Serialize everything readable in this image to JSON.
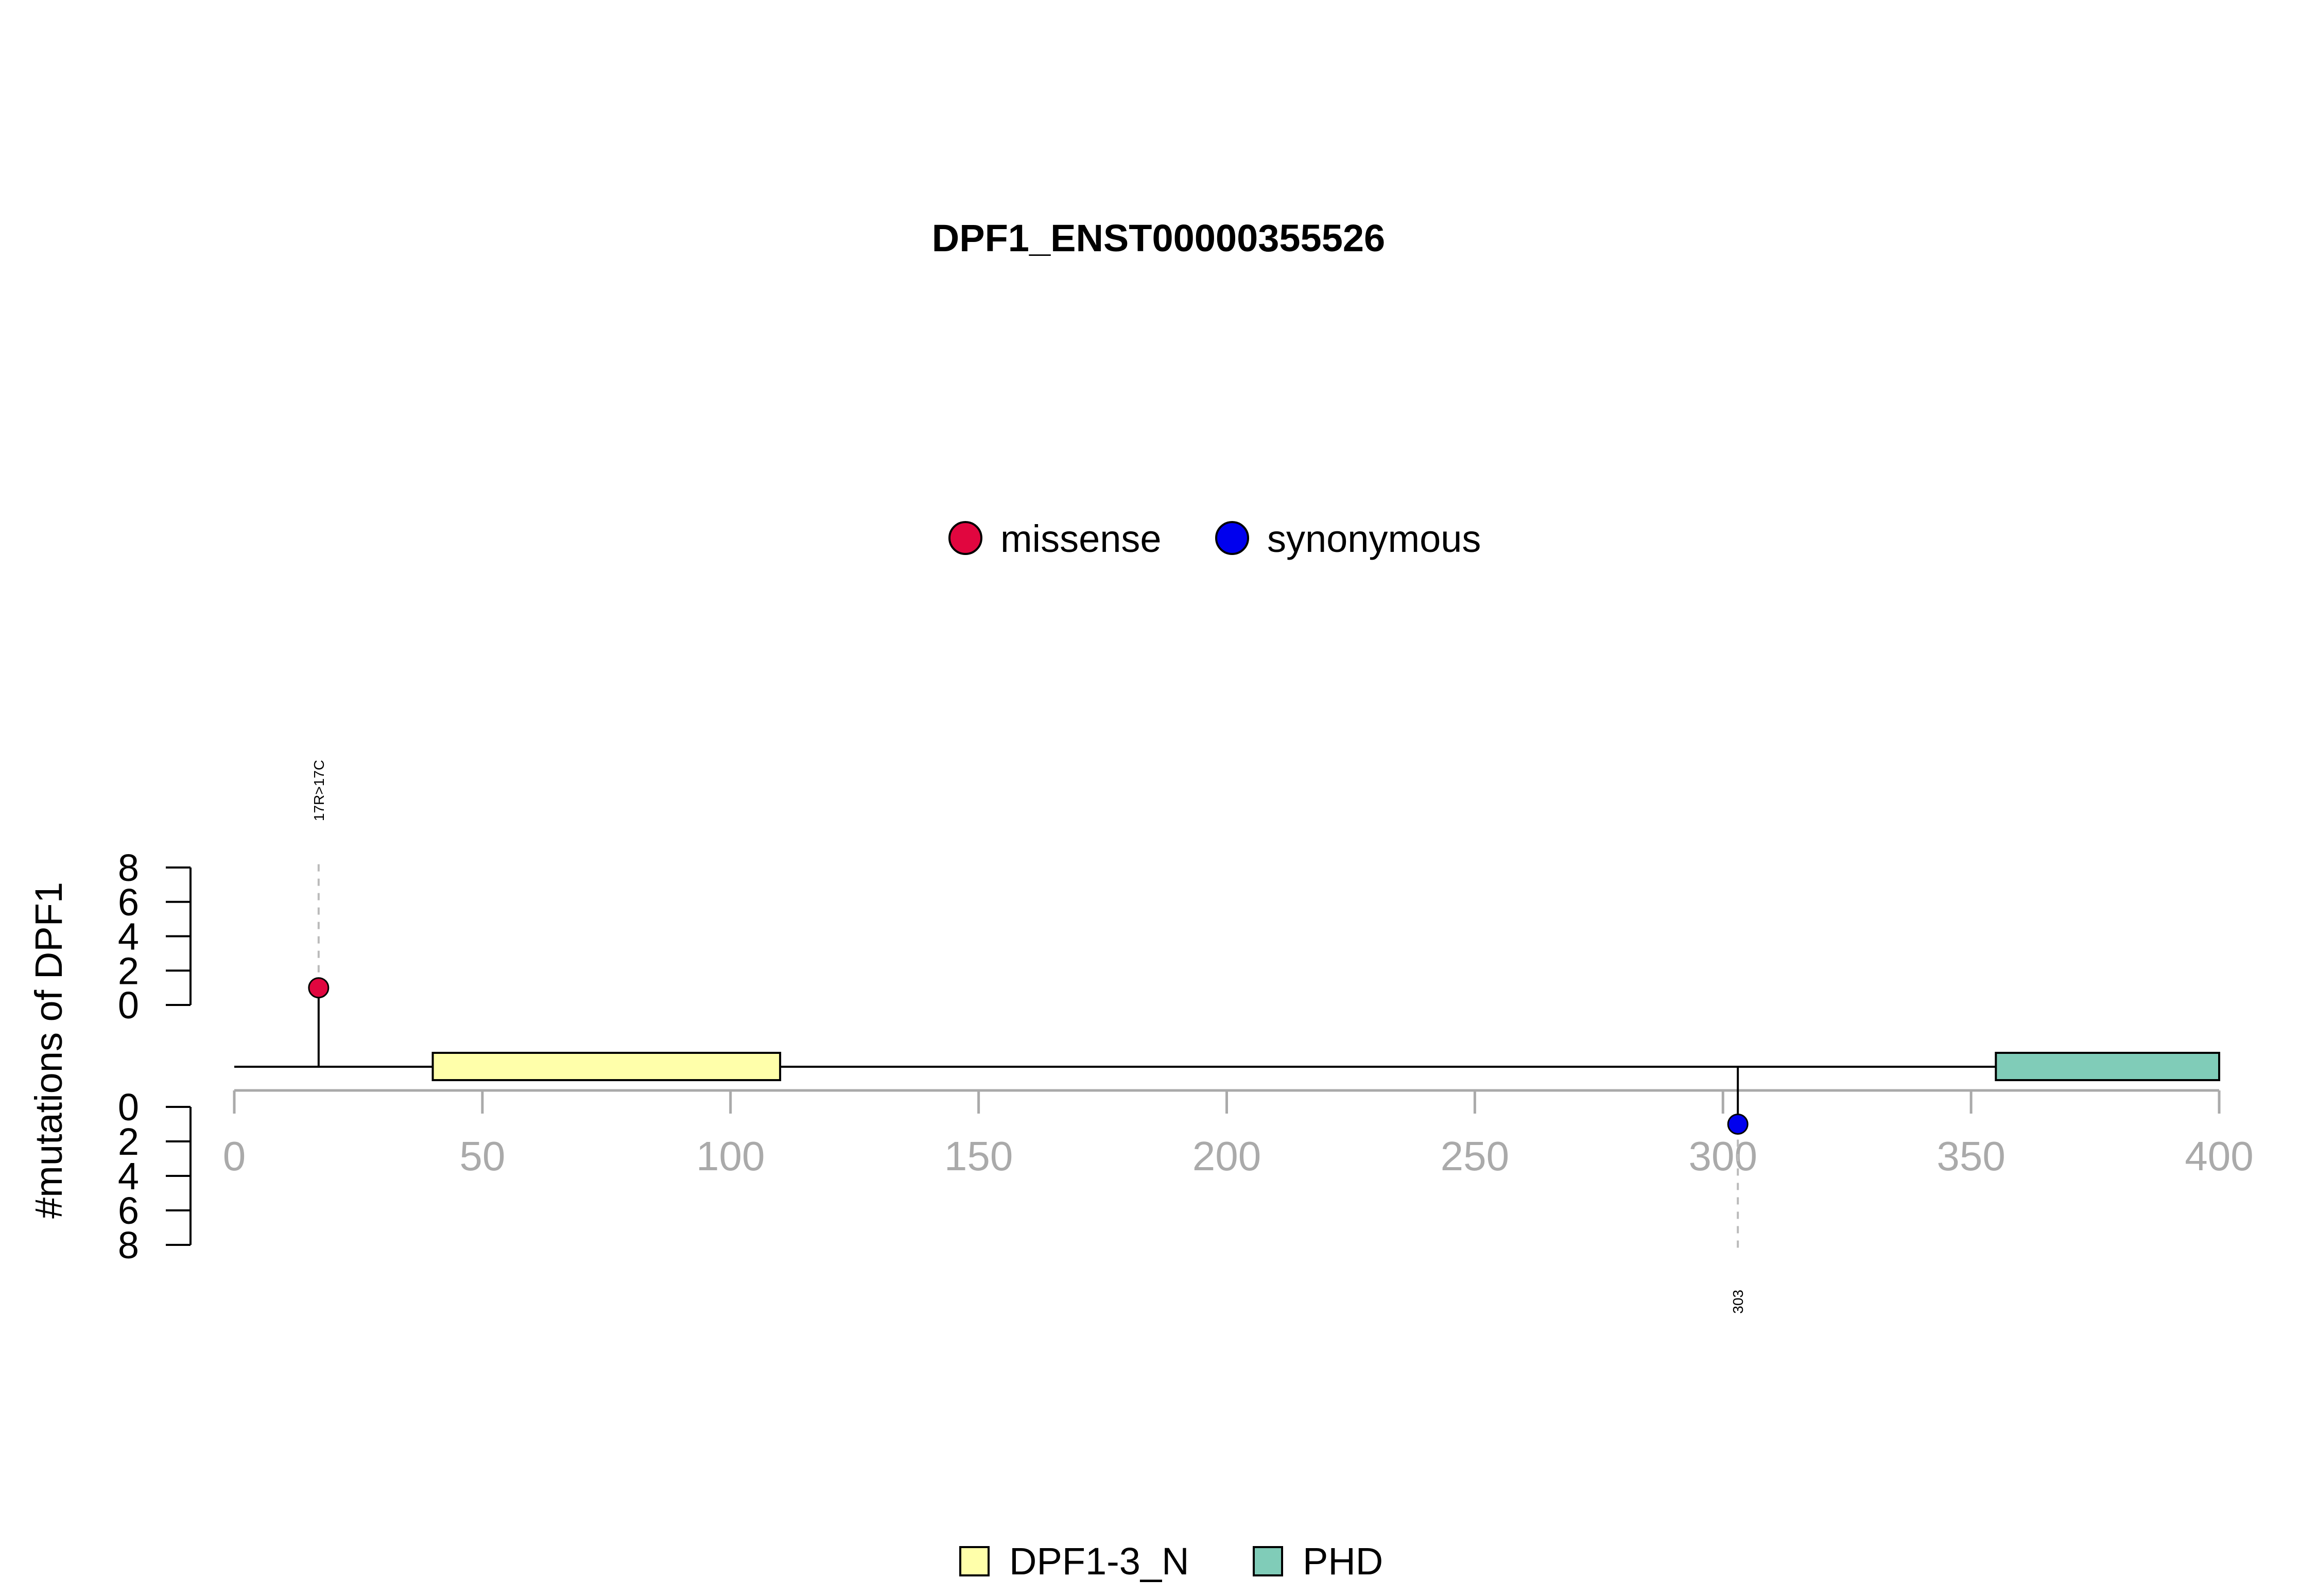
{
  "chart_data": {
    "type": "lollipop",
    "title": "DPF1_ENST00000355526",
    "ylabel": "#mutations of DPF1",
    "x_range": [
      0,
      400
    ],
    "x_ticks": [
      0,
      50,
      100,
      150,
      200,
      250,
      300,
      350,
      400
    ],
    "y_ticks_upper": [
      8,
      6,
      4,
      2,
      0
    ],
    "y_ticks_lower": [
      0,
      2,
      4,
      6,
      8
    ],
    "y_range": [
      0,
      8
    ],
    "variant_legend": [
      {
        "label": "missense",
        "color": "#e1063f"
      },
      {
        "label": "synonymous",
        "color": "#0000ee"
      }
    ],
    "mutations": [
      {
        "position": 17,
        "count": 1,
        "type": "missense",
        "label": "17R>17C",
        "side": "upper",
        "color": "#e1063f"
      },
      {
        "position": 303,
        "count": 1,
        "type": "synonymous",
        "label": "303",
        "side": "lower",
        "color": "#0000ee"
      }
    ],
    "domains": [
      {
        "name": "DPF1-3_N",
        "start": 40,
        "end": 110,
        "color": "#ffffaa"
      },
      {
        "name": "PHD",
        "start": 355,
        "end": 400,
        "color": "#80ccb8"
      }
    ],
    "domain_legend": [
      {
        "label": "DPF1-3_N",
        "color": "#ffffaa"
      },
      {
        "label": "PHD",
        "color": "#80ccb8"
      }
    ],
    "colors": {
      "axis_gray": "#aaaaaa",
      "stem": "#000000",
      "guide": "#bbbbbb"
    }
  }
}
